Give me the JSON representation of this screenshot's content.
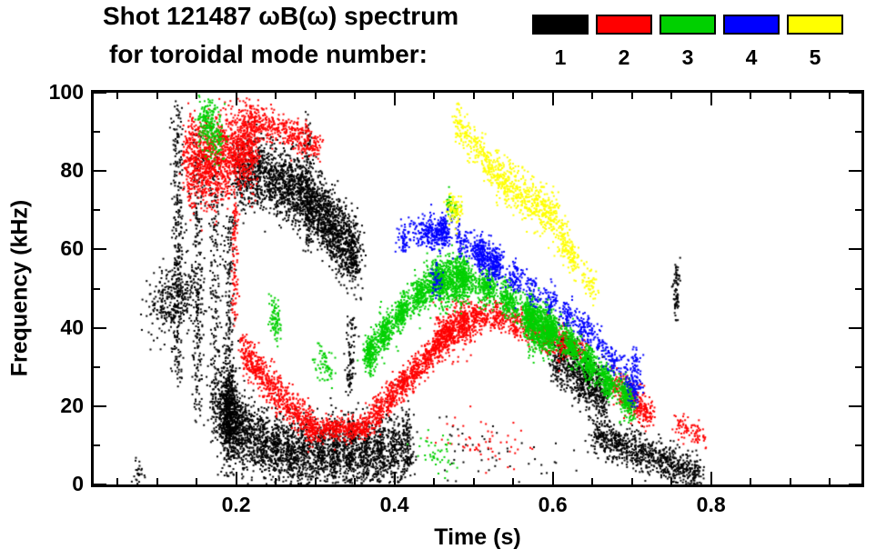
{
  "header": {
    "title": "Shot 121487 ωB(ω) spectrum",
    "subtitle": "for toroidal mode number:",
    "legend": [
      {
        "label": "1",
        "color": "#000000"
      },
      {
        "label": "2",
        "color": "#ff0000"
      },
      {
        "label": "3",
        "color": "#00d000"
      },
      {
        "label": "4",
        "color": "#0000ff"
      },
      {
        "label": "5",
        "color": "#ffff00"
      }
    ]
  },
  "axes": {
    "xlabel": "Time (s)",
    "ylabel": "Frequency (kHz)",
    "xtick_labels": [
      "0.2",
      "0.4",
      "0.6",
      "0.8"
    ],
    "ytick_labels": [
      "0",
      "20",
      "40",
      "60",
      "80",
      "100"
    ]
  },
  "chart_data": {
    "type": "scatter",
    "title": "Shot 121487 ωB(ω) spectrum",
    "subtitle": "for toroidal mode number:",
    "xlabel": "Time (s)",
    "ylabel": "Frequency (kHz)",
    "xlim": [
      0.02,
      0.99
    ],
    "ylim": [
      0,
      100
    ],
    "xticks_major": [
      0.2,
      0.4,
      0.6,
      0.8
    ],
    "xtick_minor_step": 0.05,
    "yticks_major": [
      0,
      20,
      40,
      60,
      80,
      100
    ],
    "ytick_minor_step": 10,
    "legend_position": "top",
    "grid": false,
    "series": [
      {
        "name": "1",
        "color": "#000000",
        "tracks": [
          {
            "pts": [
              [
                0.095,
                45
              ],
              [
                0.145,
                49
              ]
            ],
            "fs": 4.5,
            "ts": 0.01,
            "n": 320
          },
          {
            "pts": [
              [
                0.125,
                28
              ],
              [
                0.125,
                96
              ]
            ],
            "fs": 2,
            "ts": 0.004,
            "n": 300
          },
          {
            "pts": [
              [
                0.15,
                18
              ],
              [
                0.15,
                88
              ]
            ],
            "fs": 2,
            "ts": 0.004,
            "n": 260
          },
          {
            "pts": [
              [
                0.172,
                12
              ],
              [
                0.172,
                82
              ]
            ],
            "fs": 2,
            "ts": 0.004,
            "n": 230
          },
          {
            "pts": [
              [
                0.19,
                10
              ],
              [
                0.19,
                70
              ]
            ],
            "fs": 2,
            "ts": 0.004,
            "n": 240
          },
          {
            "pts": [
              [
                0.2,
                80
              ],
              [
                0.235,
                80
              ],
              [
                0.27,
                76
              ],
              [
                0.3,
                71
              ],
              [
                0.335,
                62
              ],
              [
                0.355,
                58
              ]
            ],
            "fs": 4.5,
            "ts": 0.004,
            "n": 2400
          },
          {
            "pts": [
              [
                0.29,
                60
              ],
              [
                0.29,
                93
              ]
            ],
            "fs": 2,
            "ts": 0.003,
            "n": 130
          },
          {
            "pts": [
              [
                0.343,
                24
              ],
              [
                0.343,
                42
              ]
            ],
            "fs": 2,
            "ts": 0.003,
            "n": 90
          },
          {
            "pts": [
              [
                0.178,
                20
              ],
              [
                0.21,
                13
              ],
              [
                0.25,
                9
              ],
              [
                0.31,
                8
              ],
              [
                0.37,
                8
              ],
              [
                0.418,
                10
              ]
            ],
            "fs": 4.5,
            "ts": 0.004,
            "n": 3000
          },
          {
            "pts": [
              [
                0.183,
                22
              ],
              [
                0.196,
                14
              ]
            ],
            "fs": 7,
            "ts": 0.006,
            "n": 450
          },
          {
            "pts": [
              [
                0.6,
                33
              ],
              [
                0.635,
                28
              ],
              [
                0.665,
                23
              ]
            ],
            "fs": 3.5,
            "ts": 0.004,
            "n": 750
          },
          {
            "pts": [
              [
                0.65,
                13
              ],
              [
                0.7,
                9
              ],
              [
                0.75,
                5
              ],
              [
                0.785,
                2
              ]
            ],
            "fs": 2.5,
            "ts": 0.004,
            "n": 850
          },
          {
            "pts": [
              [
                0.755,
                42
              ],
              [
                0.755,
                55
              ]
            ],
            "fs": 2,
            "ts": 0.002,
            "n": 70
          },
          {
            "pts": [
              [
                0.44,
                10
              ],
              [
                0.62,
                6
              ]
            ],
            "fs": 5,
            "ts": 0.04,
            "n": 55
          },
          {
            "pts": [
              [
                0.07,
                4
              ],
              [
                0.082,
                3
              ]
            ],
            "fs": 2,
            "ts": 0.004,
            "n": 25
          }
        ]
      },
      {
        "name": "2",
        "color": "#ff0000",
        "tracks": [
          {
            "pts": [
              [
                0.135,
                84
              ],
              [
                0.165,
                82
              ],
              [
                0.2,
                85
              ],
              [
                0.225,
                88
              ]
            ],
            "fs": 5.5,
            "ts": 0.004,
            "n": 1500
          },
          {
            "pts": [
              [
                0.21,
                93
              ],
              [
                0.25,
                91
              ],
              [
                0.28,
                89
              ],
              [
                0.305,
                86
              ]
            ],
            "fs": 2,
            "ts": 0.003,
            "n": 420
          },
          {
            "pts": [
              [
                0.197,
                42
              ],
              [
                0.197,
                72
              ]
            ],
            "fs": 2,
            "ts": 0.0025,
            "n": 100
          },
          {
            "pts": [
              [
                0.205,
                35
              ],
              [
                0.24,
                26
              ],
              [
                0.27,
                19
              ],
              [
                0.295,
                15.5
              ]
            ],
            "fs": 2.5,
            "ts": 0.003,
            "n": 650
          },
          {
            "pts": [
              [
                0.29,
                14.5
              ],
              [
                0.365,
                14.5
              ]
            ],
            "fs": 1.5,
            "ts": 0.003,
            "n": 450
          },
          {
            "pts": [
              [
                0.365,
                16
              ],
              [
                0.4,
                24
              ],
              [
                0.425,
                29
              ],
              [
                0.45,
                35
              ],
              [
                0.475,
                41
              ],
              [
                0.5,
                43
              ],
              [
                0.53,
                43
              ],
              [
                0.56,
                41
              ],
              [
                0.59,
                38
              ],
              [
                0.615,
                36
              ]
            ],
            "fs": 2,
            "ts": 0.003,
            "n": 1600
          },
          {
            "pts": [
              [
                0.45,
                38
              ],
              [
                0.5,
                42
              ]
            ],
            "fs": 3,
            "ts": 0.003,
            "n": 350
          },
          {
            "pts": [
              [
                0.615,
                36
              ],
              [
                0.64,
                34
              ]
            ],
            "fs": 1.5,
            "ts": 0.003,
            "n": 110
          },
          {
            "pts": [
              [
                0.675,
                26
              ],
              [
                0.7,
                22
              ],
              [
                0.725,
                17
              ]
            ],
            "fs": 2.2,
            "ts": 0.003,
            "n": 320
          },
          {
            "pts": [
              [
                0.755,
                16
              ],
              [
                0.79,
                12
              ]
            ],
            "fs": 2,
            "ts": 0.004,
            "n": 85
          },
          {
            "pts": [
              [
                0.47,
                12
              ],
              [
                0.55,
                9
              ]
            ],
            "fs": 3,
            "ts": 0.02,
            "n": 55
          }
        ]
      },
      {
        "name": "3",
        "color": "#00d000",
        "tracks": [
          {
            "pts": [
              [
                0.155,
                94
              ],
              [
                0.18,
                88
              ]
            ],
            "fs": 3.5,
            "ts": 0.004,
            "n": 240
          },
          {
            "pts": [
              [
                0.243,
                44
              ],
              [
                0.252,
                40
              ]
            ],
            "fs": 2.5,
            "ts": 0.003,
            "n": 85
          },
          {
            "pts": [
              [
                0.3,
                33
              ],
              [
                0.32,
                29
              ]
            ],
            "fs": 2.5,
            "ts": 0.003,
            "n": 65
          },
          {
            "pts": [
              [
                0.362,
                32
              ],
              [
                0.39,
                40
              ],
              [
                0.42,
                47
              ],
              [
                0.45,
                52
              ],
              [
                0.475,
                54
              ],
              [
                0.5,
                52
              ],
              [
                0.53,
                49
              ],
              [
                0.56,
                45
              ],
              [
                0.59,
                41
              ],
              [
                0.615,
                37
              ],
              [
                0.64,
                32
              ],
              [
                0.665,
                27
              ],
              [
                0.69,
                23
              ],
              [
                0.705,
                19
              ]
            ],
            "fs": 2.2,
            "ts": 0.0025,
            "n": 3200
          },
          {
            "pts": [
              [
                0.44,
                51
              ],
              [
                0.49,
                53
              ]
            ],
            "fs": 3.2,
            "ts": 0.003,
            "n": 550
          },
          {
            "pts": [
              [
                0.565,
                42
              ],
              [
                0.6,
                39
              ]
            ],
            "fs": 3.2,
            "ts": 0.003,
            "n": 550
          },
          {
            "pts": [
              [
                0.465,
                72
              ],
              [
                0.478,
                70
              ]
            ],
            "fs": 2,
            "ts": 0.003,
            "n": 60
          },
          {
            "pts": [
              [
                0.43,
                9
              ],
              [
                0.47,
                7
              ]
            ],
            "fs": 2.5,
            "ts": 0.01,
            "n": 45
          }
        ]
      },
      {
        "name": "4",
        "color": "#0000ff",
        "tracks": [
          {
            "pts": [
              [
                0.405,
                62
              ],
              [
                0.43,
                65
              ],
              [
                0.46,
                65
              ],
              [
                0.49,
                62
              ],
              [
                0.515,
                58
              ],
              [
                0.545,
                54
              ],
              [
                0.575,
                50
              ],
              [
                0.61,
                45
              ],
              [
                0.645,
                39
              ],
              [
                0.68,
                31
              ],
              [
                0.71,
                25
              ]
            ],
            "fs": 2,
            "ts": 0.003,
            "n": 950
          },
          {
            "pts": [
              [
                0.5,
                60
              ],
              [
                0.53,
                56
              ]
            ],
            "fs": 2.5,
            "ts": 0.003,
            "n": 260
          },
          {
            "pts": [
              [
                0.44,
                64
              ],
              [
                0.468,
                65
              ]
            ],
            "fs": 2.2,
            "ts": 0.003,
            "n": 210
          },
          {
            "pts": [
              [
                0.448,
                53
              ],
              [
                0.456,
                52
              ]
            ],
            "fs": 1.8,
            "ts": 0.003,
            "n": 45
          },
          {
            "pts": [
              [
                0.703,
                34
              ],
              [
                0.703,
                21
              ]
            ],
            "fs": 1.5,
            "ts": 0.003,
            "n": 85
          }
        ]
      },
      {
        "name": "5",
        "color": "#ffff00",
        "tracks": [
          {
            "pts": [
              [
                0.475,
                93
              ],
              [
                0.5,
                87
              ],
              [
                0.525,
                80
              ]
            ],
            "fs": 2.2,
            "ts": 0.003,
            "n": 230
          },
          {
            "pts": [
              [
                0.525,
                80
              ],
              [
                0.555,
                75
              ],
              [
                0.585,
                71
              ],
              [
                0.605,
                67
              ]
            ],
            "fs": 3,
            "ts": 0.003,
            "n": 520
          },
          {
            "pts": [
              [
                0.608,
                64
              ],
              [
                0.63,
                57
              ]
            ],
            "fs": 2.2,
            "ts": 0.003,
            "n": 150
          },
          {
            "pts": [
              [
                0.468,
                72
              ],
              [
                0.482,
                69
              ]
            ],
            "fs": 2,
            "ts": 0.003,
            "n": 85
          },
          {
            "pts": [
              [
                0.64,
                53
              ],
              [
                0.652,
                50
              ]
            ],
            "fs": 2,
            "ts": 0.003,
            "n": 55
          }
        ]
      }
    ]
  }
}
